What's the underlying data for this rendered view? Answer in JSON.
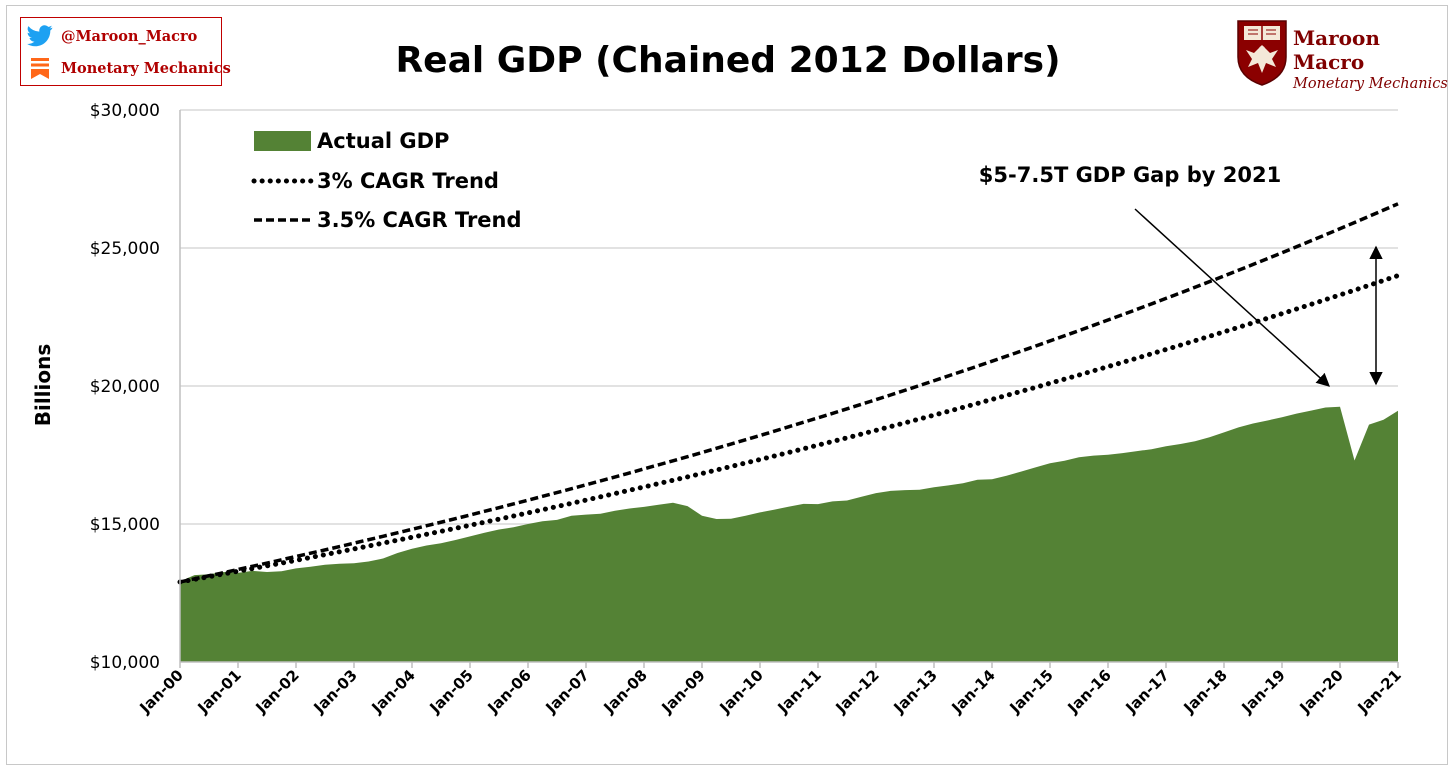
{
  "social": {
    "twitter_handle": "@Maroon_Macro",
    "substack_name": "Monetary Mechanics",
    "twitter_icon": "twitter-bird-icon",
    "substack_icon": "substack-icon",
    "color": "#c00000"
  },
  "brand": {
    "name": "Maroon Macro",
    "tagline": "Monetary Mechanics",
    "logo_icon": "shield-phoenix-icon",
    "color": "#800000"
  },
  "chart_data": {
    "type": "area",
    "title": "Real GDP (Chained 2012 Dollars)",
    "ylabel": "Billions",
    "xlabel": "",
    "ylim": [
      10000,
      30000
    ],
    "y_ticks": [
      10000,
      15000,
      20000,
      25000,
      30000
    ],
    "y_tick_labels": [
      "$10,000",
      "$15,000",
      "$20,000",
      "$25,000",
      "$30,000"
    ],
    "x_tick_labels": [
      "Jan-00",
      "Jan-01",
      "Jan-02",
      "Jan-03",
      "Jan-04",
      "Jan-05",
      "Jan-06",
      "Jan-07",
      "Jan-08",
      "Jan-09",
      "Jan-10",
      "Jan-11",
      "Jan-12",
      "Jan-13",
      "Jan-14",
      "Jan-15",
      "Jan-16",
      "Jan-17",
      "Jan-18",
      "Jan-19",
      "Jan-20",
      "Jan-21"
    ],
    "grid": true,
    "legend_position": "top-left",
    "annotation": "$5-7.5T GDP Gap by 2021",
    "series": [
      {
        "name": "Actual GDP",
        "style": "area",
        "color": "#548235",
        "x": [
          "2000-01",
          "2000-04",
          "2000-07",
          "2000-10",
          "2001-01",
          "2001-04",
          "2001-07",
          "2001-10",
          "2002-01",
          "2002-04",
          "2002-07",
          "2002-10",
          "2003-01",
          "2003-04",
          "2003-07",
          "2003-10",
          "2004-01",
          "2004-04",
          "2004-07",
          "2004-10",
          "2005-01",
          "2005-04",
          "2005-07",
          "2005-10",
          "2006-01",
          "2006-04",
          "2006-07",
          "2006-10",
          "2007-01",
          "2007-04",
          "2007-07",
          "2007-10",
          "2008-01",
          "2008-04",
          "2008-07",
          "2008-10",
          "2009-01",
          "2009-04",
          "2009-07",
          "2009-10",
          "2010-01",
          "2010-04",
          "2010-07",
          "2010-10",
          "2011-01",
          "2011-04",
          "2011-07",
          "2011-10",
          "2012-01",
          "2012-04",
          "2012-07",
          "2012-10",
          "2013-01",
          "2013-04",
          "2013-07",
          "2013-10",
          "2014-01",
          "2014-04",
          "2014-07",
          "2014-10",
          "2015-01",
          "2015-04",
          "2015-07",
          "2015-10",
          "2016-01",
          "2016-04",
          "2016-07",
          "2016-10",
          "2017-01",
          "2017-04",
          "2017-07",
          "2017-10",
          "2018-01",
          "2018-04",
          "2018-07",
          "2018-10",
          "2019-01",
          "2019-04",
          "2019-07",
          "2019-10",
          "2020-01",
          "2020-04",
          "2020-07",
          "2020-10",
          "2021-01"
        ],
        "values": [
          12925,
          13150,
          13180,
          13260,
          13230,
          13300,
          13260,
          13290,
          13390,
          13450,
          13520,
          13560,
          13580,
          13640,
          13750,
          13950,
          14100,
          14220,
          14300,
          14420,
          14550,
          14680,
          14800,
          14880,
          15000,
          15100,
          15150,
          15300,
          15340,
          15370,
          15480,
          15560,
          15620,
          15700,
          15770,
          15650,
          15300,
          15180,
          15190,
          15300,
          15420,
          15520,
          15630,
          15730,
          15720,
          15820,
          15850,
          15990,
          16120,
          16200,
          16230,
          16240,
          16330,
          16400,
          16480,
          16600,
          16620,
          16750,
          16900,
          17050,
          17200,
          17290,
          17420,
          17480,
          17510,
          17570,
          17640,
          17710,
          17820,
          17900,
          18000,
          18140,
          18320,
          18500,
          18640,
          18750,
          18870,
          19000,
          19110,
          19220,
          19250,
          17300,
          18600,
          18780,
          19100
        ]
      },
      {
        "name": "3% CAGR Trend",
        "style": "dotted",
        "color": "#000000",
        "x": [
          "2000-01",
          "2021-01"
        ],
        "cagr": "3%",
        "start_value": 12900,
        "end_value": 24000
      },
      {
        "name": "3.5% CAGR Trend",
        "style": "dashed",
        "color": "#000000",
        "x": [
          "2000-01",
          "2021-01"
        ],
        "cagr": "3.5%",
        "start_value": 12900,
        "end_value": 26600
      }
    ]
  }
}
